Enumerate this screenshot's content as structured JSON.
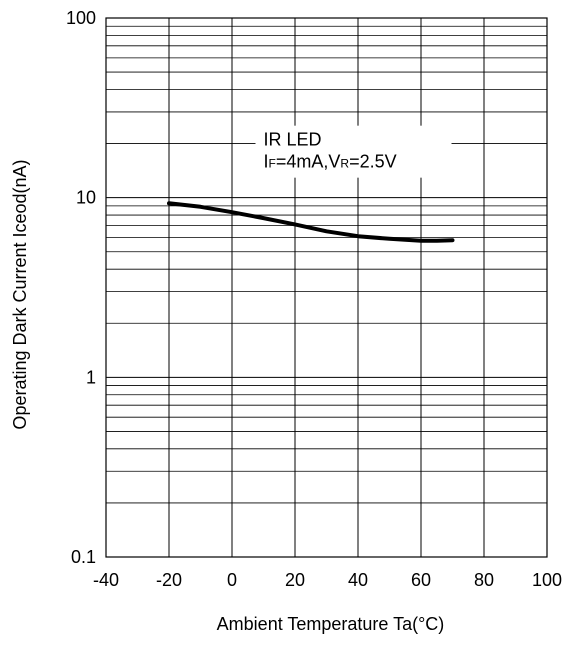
{
  "chart_data": {
    "type": "line",
    "xlabel": "Ambient Temperature Ta(°C)",
    "ylabel": "Operating Dark Current Iceod(nA)",
    "xlim": [
      -40,
      100
    ],
    "ylim": [
      0.1,
      100
    ],
    "yscale": "log",
    "x_ticks": [
      -40,
      -20,
      0,
      20,
      40,
      60,
      80,
      100
    ],
    "x_tick_labels": [
      "-40",
      "-20",
      "0",
      "20",
      "40",
      "60",
      "80",
      "100"
    ],
    "y_ticks": [
      0.1,
      1,
      10,
      100
    ],
    "y_tick_labels": [
      "0.1",
      "1",
      "10",
      "100"
    ],
    "grid": true,
    "annotation": {
      "line1": "IR LED",
      "line2_parts": [
        {
          "text": "I",
          "sub": false
        },
        {
          "text": "F",
          "sub": true
        },
        {
          "text": "=4mA,V",
          "sub": false
        },
        {
          "text": "R",
          "sub": true
        },
        {
          "text": "=2.5V",
          "sub": false
        }
      ]
    },
    "series": [
      {
        "color": "#000000",
        "x": [
          -20,
          -10,
          0,
          10,
          20,
          30,
          40,
          50,
          60,
          65,
          70
        ],
        "y": [
          9.3,
          8.9,
          8.3,
          7.7,
          7.1,
          6.5,
          6.1,
          5.9,
          5.75,
          5.75,
          5.8
        ]
      }
    ]
  }
}
